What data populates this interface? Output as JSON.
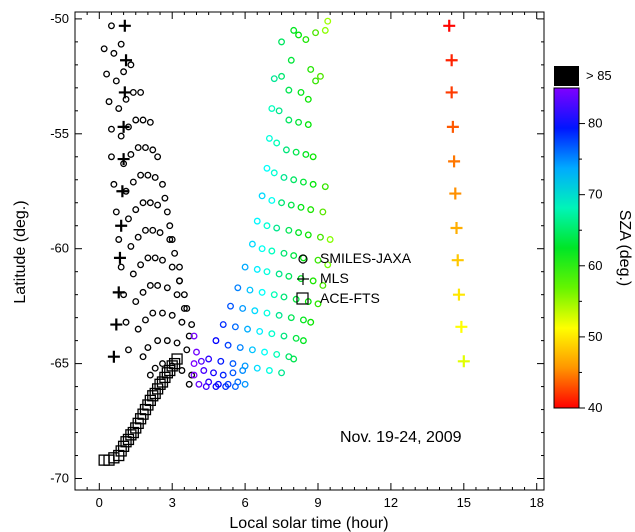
{
  "chart_data": {
    "type": "scatter",
    "title": "",
    "annotation": "Nov. 19-24, 2009",
    "xlabel": "Local solar time (hour)",
    "ylabel": "Latitude (deg.)",
    "xlim": [
      -1,
      18.3
    ],
    "ylim": [
      -70.5,
      -49.7
    ],
    "x_ticks": [
      0,
      3,
      6,
      9,
      12,
      15,
      18
    ],
    "y_ticks": [
      -50,
      -55,
      -60,
      -65,
      -70
    ],
    "grid": false,
    "legend_position": "right-center",
    "legend": [
      {
        "name": "SMILES-JAXA",
        "marker": "circle"
      },
      {
        "name": "MLS",
        "marker": "plus"
      },
      {
        "name": "ACE-FTS",
        "marker": "square"
      }
    ],
    "colorbar": {
      "label": "SZA (deg.)",
      "min": 40,
      "max": 85,
      "ticks": [
        40,
        50,
        60,
        70,
        80
      ],
      "over_label": "> 85",
      "over_color": "#000000"
    },
    "series": [
      {
        "name": "SMILES-JAXA",
        "marker": "circle",
        "points": [
          [
            0.2,
            -51.3
          ],
          [
            0.3,
            -52.4
          ],
          [
            0.4,
            -53.6
          ],
          [
            0.5,
            -54.8
          ],
          [
            0.5,
            -56.0
          ],
          [
            0.6,
            -57.2
          ],
          [
            0.7,
            -58.4
          ],
          [
            0.8,
            -59.6
          ],
          [
            0.9,
            -60.8
          ],
          [
            1.0,
            -62.0
          ],
          [
            1.1,
            -63.2
          ],
          [
            1.2,
            -64.4
          ],
          [
            0.5,
            -50.3
          ],
          [
            0.6,
            -51.5
          ],
          [
            0.7,
            -52.7
          ],
          [
            0.8,
            -53.9
          ],
          [
            0.9,
            -55.1
          ],
          [
            1.0,
            -56.3
          ],
          [
            1.1,
            -57.5
          ],
          [
            1.2,
            -58.7
          ],
          [
            1.3,
            -59.9
          ],
          [
            1.4,
            -61.1
          ],
          [
            1.5,
            -62.3
          ],
          [
            1.6,
            -63.5
          ],
          [
            1.8,
            -64.7
          ],
          [
            2.1,
            -65.5
          ],
          [
            0.9,
            -51.1
          ],
          [
            1.0,
            -52.3
          ],
          [
            1.1,
            -53.5
          ],
          [
            1.2,
            -54.7
          ],
          [
            1.3,
            -55.9
          ],
          [
            1.4,
            -57.1
          ],
          [
            1.5,
            -58.3
          ],
          [
            1.6,
            -59.5
          ],
          [
            1.7,
            -60.7
          ],
          [
            1.8,
            -61.9
          ],
          [
            1.9,
            -63.1
          ],
          [
            2.0,
            -64.3
          ],
          [
            2.3,
            -65.2
          ],
          [
            1.3,
            -52.0
          ],
          [
            1.4,
            -53.2
          ],
          [
            1.5,
            -54.4
          ],
          [
            1.6,
            -55.6
          ],
          [
            1.7,
            -56.8
          ],
          [
            1.8,
            -58.0
          ],
          [
            1.9,
            -59.2
          ],
          [
            2.0,
            -60.4
          ],
          [
            2.1,
            -61.6
          ],
          [
            2.2,
            -62.8
          ],
          [
            2.4,
            -64.0
          ],
          [
            2.6,
            -65.0
          ],
          [
            1.7,
            -53.2
          ],
          [
            1.8,
            -54.4
          ],
          [
            1.9,
            -55.6
          ],
          [
            2.0,
            -56.8
          ],
          [
            2.1,
            -58.0
          ],
          [
            2.2,
            -59.2
          ],
          [
            2.3,
            -60.4
          ],
          [
            2.4,
            -61.6
          ],
          [
            2.6,
            -62.8
          ],
          [
            2.8,
            -64.0
          ],
          [
            3.0,
            -65.1
          ],
          [
            2.1,
            -54.5
          ],
          [
            2.2,
            -55.7
          ],
          [
            2.3,
            -56.9
          ],
          [
            2.4,
            -58.1
          ],
          [
            2.5,
            -59.3
          ],
          [
            2.6,
            -60.5
          ],
          [
            2.8,
            -61.7
          ],
          [
            3.0,
            -62.9
          ],
          [
            3.2,
            -64.1
          ],
          [
            3.4,
            -65.3
          ],
          [
            2.4,
            -56.0
          ],
          [
            2.6,
            -57.2
          ],
          [
            2.8,
            -58.4
          ],
          [
            2.9,
            -59.6
          ],
          [
            3.0,
            -60.8
          ],
          [
            3.2,
            -62.0
          ],
          [
            3.4,
            -63.2
          ],
          [
            3.6,
            -64.4
          ],
          [
            3.8,
            -65.5
          ],
          [
            2.7,
            -57.8
          ],
          [
            2.9,
            -59.0
          ],
          [
            3.1,
            -60.2
          ],
          [
            3.3,
            -61.4
          ],
          [
            3.5,
            -62.6
          ],
          [
            3.7,
            -63.8
          ],
          [
            3.9,
            -65.0
          ],
          [
            3.0,
            -59.6
          ],
          [
            3.3,
            -60.8
          ],
          [
            3.5,
            -62.0
          ],
          [
            3.8,
            -63.3
          ],
          [
            4.0,
            -64.5
          ],
          [
            3.3,
            -61.4
          ],
          [
            3.6,
            -62.6
          ],
          [
            3.9,
            -63.8
          ],
          [
            4.2,
            -64.9
          ],
          [
            3.7,
            -65.9
          ],
          [
            3.9,
            -65.5
          ],
          [
            4.1,
            -65.9
          ],
          [
            4.3,
            -65.3
          ],
          [
            4.5,
            -65.8
          ],
          [
            4.7,
            -65.4
          ],
          [
            4.9,
            -65.9
          ],
          [
            5.1,
            -65.5
          ],
          [
            5.3,
            -65.9
          ],
          [
            5.5,
            -65.4
          ],
          [
            5.7,
            -65.8
          ],
          [
            5.9,
            -65.3
          ],
          [
            4.4,
            -66.0
          ],
          [
            4.8,
            -66.0
          ],
          [
            5.2,
            -66.0
          ],
          [
            5.6,
            -66.0
          ],
          [
            6.0,
            -65.9
          ],
          [
            4.5,
            -64.8
          ],
          [
            4.8,
            -64.0
          ],
          [
            5.1,
            -63.3
          ],
          [
            5.4,
            -62.5
          ],
          [
            5.7,
            -61.7
          ],
          [
            6.0,
            -60.8
          ],
          [
            6.3,
            -59.8
          ],
          [
            6.5,
            -58.8
          ],
          [
            6.7,
            -57.7
          ],
          [
            6.9,
            -56.5
          ],
          [
            7.0,
            -55.2
          ],
          [
            7.1,
            -53.9
          ],
          [
            7.2,
            -52.6
          ],
          [
            5.0,
            -64.9
          ],
          [
            5.3,
            -64.2
          ],
          [
            5.6,
            -63.4
          ],
          [
            5.9,
            -62.6
          ],
          [
            6.2,
            -61.8
          ],
          [
            6.5,
            -60.9
          ],
          [
            6.7,
            -60.0
          ],
          [
            6.9,
            -59.0
          ],
          [
            7.1,
            -57.9
          ],
          [
            7.2,
            -56.7
          ],
          [
            7.3,
            -55.4
          ],
          [
            7.4,
            -54.0
          ],
          [
            7.5,
            -52.5
          ],
          [
            7.5,
            -51.0
          ],
          [
            5.5,
            -65.0
          ],
          [
            5.8,
            -64.3
          ],
          [
            6.1,
            -63.5
          ],
          [
            6.4,
            -62.7
          ],
          [
            6.7,
            -61.9
          ],
          [
            6.9,
            -61.0
          ],
          [
            7.1,
            -60.1
          ],
          [
            7.3,
            -59.1
          ],
          [
            7.5,
            -58.0
          ],
          [
            7.6,
            -56.9
          ],
          [
            7.7,
            -55.7
          ],
          [
            7.8,
            -54.4
          ],
          [
            7.8,
            -53.1
          ],
          [
            7.9,
            -51.8
          ],
          [
            8.0,
            -50.5
          ],
          [
            6.0,
            -65.1
          ],
          [
            6.3,
            -64.4
          ],
          [
            6.6,
            -63.6
          ],
          [
            6.9,
            -62.8
          ],
          [
            7.2,
            -62.0
          ],
          [
            7.4,
            -61.1
          ],
          [
            7.6,
            -60.2
          ],
          [
            7.8,
            -59.2
          ],
          [
            7.9,
            -58.1
          ],
          [
            8.0,
            -57.0
          ],
          [
            8.1,
            -55.8
          ],
          [
            8.2,
            -54.5
          ],
          [
            8.3,
            -53.2
          ],
          [
            6.5,
            -65.2
          ],
          [
            6.8,
            -64.5
          ],
          [
            7.1,
            -63.7
          ],
          [
            7.4,
            -62.9
          ],
          [
            7.6,
            -62.1
          ],
          [
            7.8,
            -61.2
          ],
          [
            8.0,
            -60.3
          ],
          [
            8.2,
            -59.3
          ],
          [
            8.3,
            -58.2
          ],
          [
            8.4,
            -57.1
          ],
          [
            8.5,
            -55.9
          ],
          [
            8.6,
            -54.6
          ],
          [
            7.0,
            -65.3
          ],
          [
            7.3,
            -64.6
          ],
          [
            7.6,
            -63.8
          ],
          [
            7.9,
            -63.0
          ],
          [
            8.1,
            -62.2
          ],
          [
            8.3,
            -61.3
          ],
          [
            8.4,
            -60.4
          ],
          [
            8.6,
            -59.4
          ],
          [
            8.7,
            -58.3
          ],
          [
            8.8,
            -57.2
          ],
          [
            8.8,
            -56.0
          ],
          [
            7.5,
            -65.4
          ],
          [
            7.8,
            -64.7
          ],
          [
            8.1,
            -63.9
          ],
          [
            8.4,
            -63.1
          ],
          [
            8.6,
            -62.3
          ],
          [
            8.8,
            -61.4
          ],
          [
            9.0,
            -60.5
          ],
          [
            9.1,
            -59.5
          ],
          [
            9.2,
            -58.4
          ],
          [
            9.3,
            -57.3
          ],
          [
            8.0,
            -64.8
          ],
          [
            8.4,
            -64.0
          ],
          [
            8.7,
            -63.2
          ],
          [
            9.0,
            -62.4
          ],
          [
            9.2,
            -61.6
          ],
          [
            9.4,
            -60.7
          ],
          [
            9.5,
            -59.6
          ],
          [
            8.2,
            -50.7
          ],
          [
            8.5,
            -50.9
          ],
          [
            8.9,
            -50.6
          ],
          [
            9.3,
            -50.5
          ],
          [
            9.4,
            -50.1
          ],
          [
            8.7,
            -52.2
          ],
          [
            8.9,
            -52.7
          ],
          [
            9.1,
            -52.5
          ],
          [
            8.6,
            -53.5
          ]
        ]
      },
      {
        "name": "MLS",
        "marker": "plus",
        "points": [
          [
            1.05,
            -50.3
          ],
          [
            1.1,
            -51.8
          ],
          [
            1.05,
            -53.2
          ],
          [
            1.0,
            -54.7
          ],
          [
            1.0,
            -56.1
          ],
          [
            0.95,
            -57.5
          ],
          [
            0.9,
            -59.0
          ],
          [
            0.85,
            -60.4
          ],
          [
            0.8,
            -61.9
          ],
          [
            0.7,
            -63.3
          ],
          [
            0.6,
            -64.7
          ],
          [
            14.4,
            -50.3
          ],
          [
            14.5,
            -51.8
          ],
          [
            14.5,
            -53.2
          ],
          [
            14.55,
            -54.7
          ],
          [
            14.6,
            -56.2
          ],
          [
            14.65,
            -57.6
          ],
          [
            14.7,
            -59.1
          ],
          [
            14.75,
            -60.5
          ],
          [
            14.8,
            -62.0
          ],
          [
            14.9,
            -63.4
          ],
          [
            15.0,
            -64.9
          ]
        ]
      },
      {
        "name": "ACE-FTS",
        "marker": "square",
        "points": [
          [
            0.2,
            -69.2
          ],
          [
            0.4,
            -69.2
          ],
          [
            0.6,
            -69.1
          ],
          [
            0.8,
            -69.0
          ],
          [
            0.9,
            -68.8
          ],
          [
            1.0,
            -68.6
          ],
          [
            1.1,
            -68.4
          ],
          [
            1.2,
            -68.3
          ],
          [
            1.3,
            -68.1
          ],
          [
            1.4,
            -68.0
          ],
          [
            1.5,
            -67.8
          ],
          [
            1.6,
            -67.6
          ],
          [
            1.7,
            -67.4
          ],
          [
            1.8,
            -67.2
          ],
          [
            1.9,
            -67.0
          ],
          [
            2.0,
            -66.8
          ],
          [
            2.1,
            -66.6
          ],
          [
            2.2,
            -66.4
          ],
          [
            2.3,
            -66.3
          ],
          [
            2.4,
            -66.1
          ],
          [
            2.5,
            -65.9
          ],
          [
            2.6,
            -65.8
          ],
          [
            2.7,
            -65.6
          ],
          [
            2.8,
            -65.4
          ],
          [
            2.9,
            -65.3
          ],
          [
            3.0,
            -65.1
          ],
          [
            3.1,
            -65.0
          ],
          [
            3.2,
            -64.8
          ]
        ]
      }
    ]
  }
}
